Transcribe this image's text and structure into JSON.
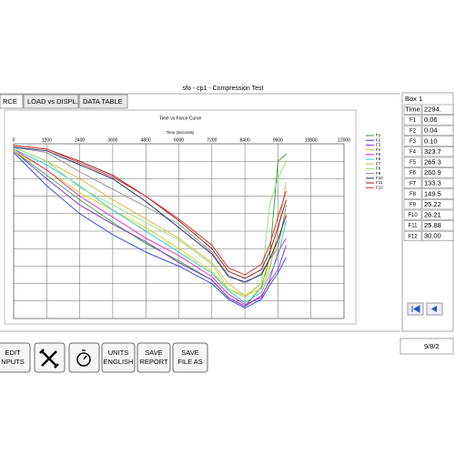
{
  "window_title": "sfo - cp1 - Compression Test",
  "tabs": [
    "RCE",
    "LOAD vs DISPL.",
    "DATA TABLE"
  ],
  "chart_data": {
    "type": "line",
    "title": "Time vs Force Curve",
    "x_label": "Time (seconds)",
    "x": [
      0,
      1200,
      2400,
      3600,
      4800,
      6000,
      7200,
      7800,
      8400,
      9000,
      9300,
      9600,
      9900
    ],
    "xlim": [
      0,
      12000
    ],
    "xticks": [
      0,
      1200,
      2400,
      3600,
      4800,
      6000,
      7200,
      8400,
      9600,
      10800,
      12000
    ],
    "ylim": [
      -10,
      0
    ],
    "ygrid": [
      0,
      -1,
      -2,
      -3,
      -4,
      -5,
      -6,
      -7,
      -8,
      -9,
      -10
    ],
    "grid": true,
    "series": [
      {
        "name": "F1",
        "color": "#2ca02c",
        "values": [
          -0.4,
          -1.8,
          -3.2,
          -4.5,
          -5.7,
          -6.7,
          -7.8,
          -8.8,
          -9.3,
          -8.2,
          -6.5,
          -1.0,
          -0.6
        ]
      },
      {
        "name": "F2",
        "color": "#1f3fd6",
        "values": [
          -0.5,
          -2.4,
          -4.0,
          -5.2,
          -6.2,
          -7.0,
          -8.0,
          -8.9,
          -9.4,
          -8.9,
          -8.1,
          -7.4,
          -6.5
        ]
      },
      {
        "name": "F3",
        "color": "#8a2be2",
        "values": [
          -0.4,
          -2.0,
          -3.5,
          -4.6,
          -5.6,
          -6.8,
          -7.8,
          -8.8,
          -9.3,
          -8.7,
          -7.9,
          -7.2,
          -5.8
        ]
      },
      {
        "name": "F4",
        "color": "#d4d400",
        "values": [
          -0.4,
          -1.5,
          -2.8,
          -3.8,
          -4.8,
          -6.0,
          -7.3,
          -8.3,
          -8.7,
          -8.0,
          -7.0,
          -5.5,
          -4.0
        ]
      },
      {
        "name": "F5",
        "color": "#e020c0",
        "values": [
          -0.3,
          -1.5,
          -3.0,
          -4.2,
          -5.4,
          -6.4,
          -7.6,
          -8.6,
          -9.2,
          -8.8,
          -7.8,
          -6.2,
          -5.4
        ]
      },
      {
        "name": "F6",
        "color": "#20c8d8",
        "values": [
          -0.3,
          -1.2,
          -2.4,
          -3.8,
          -5.0,
          -6.2,
          -7.4,
          -8.4,
          -9.1,
          -8.5,
          -7.5,
          -6.5,
          -4.4
        ]
      },
      {
        "name": "F7",
        "color": "#e0b040",
        "values": [
          -0.2,
          -1.0,
          -2.0,
          -3.2,
          -4.3,
          -5.4,
          -6.8,
          -8.0,
          -8.7,
          -8.3,
          -7.2,
          -5.0,
          -2.2
        ]
      },
      {
        "name": "F8",
        "color": "#90e070",
        "values": [
          -0.2,
          -1.0,
          -2.5,
          -3.5,
          -4.5,
          -5.5,
          -6.9,
          -8.3,
          -8.8,
          -8.0,
          -3.5,
          -2.0,
          -1.0
        ]
      },
      {
        "name": "F9",
        "color": "#909090",
        "values": [
          -0.2,
          -0.5,
          -1.6,
          -2.6,
          -3.6,
          -4.6,
          -6.2,
          -7.5,
          -8.0,
          -7.4,
          -6.6,
          -6.0,
          -3.5
        ]
      },
      {
        "name": "F10",
        "color": "#1a2a6c",
        "values": [
          -0.2,
          -0.4,
          -1.2,
          -2.0,
          -3.3,
          -4.8,
          -6.3,
          -7.6,
          -7.9,
          -7.5,
          -6.6,
          -5.5,
          -4.1
        ]
      },
      {
        "name": "F11",
        "color": "#8b1a1a",
        "values": [
          -0.1,
          -0.3,
          -1.0,
          -1.8,
          -3.0,
          -4.4,
          -6.0,
          -7.3,
          -7.7,
          -7.2,
          -6.2,
          -4.8,
          -3.2
        ]
      },
      {
        "name": "F12",
        "color": "#e02020",
        "values": [
          -0.1,
          -0.3,
          -1.1,
          -1.9,
          -3.0,
          -4.3,
          -5.8,
          -7.1,
          -7.5,
          -6.9,
          -5.8,
          -4.2,
          -2.7
        ]
      }
    ]
  },
  "data_panel": {
    "title": "Box 1",
    "rows": [
      [
        "Time",
        "2294."
      ],
      [
        "F1",
        "0.06"
      ],
      [
        "F2",
        "0.04"
      ],
      [
        "F3",
        "0.10"
      ],
      [
        "F4",
        "323.7"
      ],
      [
        "F5",
        "265.3"
      ],
      [
        "F6",
        "260.9"
      ],
      [
        "F7",
        "133.3"
      ],
      [
        "F8",
        "149.5"
      ],
      [
        "F9",
        "25.22"
      ],
      [
        "F10",
        "26.21"
      ],
      [
        "F11",
        "25.88"
      ],
      [
        "F12",
        "30.00"
      ]
    ]
  },
  "buttons": [
    [
      "EDIT",
      "NPUTS"
    ],
    [
      "UNITS",
      "ENGLISH"
    ],
    [
      "SAVE",
      "REPORT"
    ],
    [
      "SAVE",
      "FILE AS"
    ]
  ],
  "date": "9/8/2"
}
